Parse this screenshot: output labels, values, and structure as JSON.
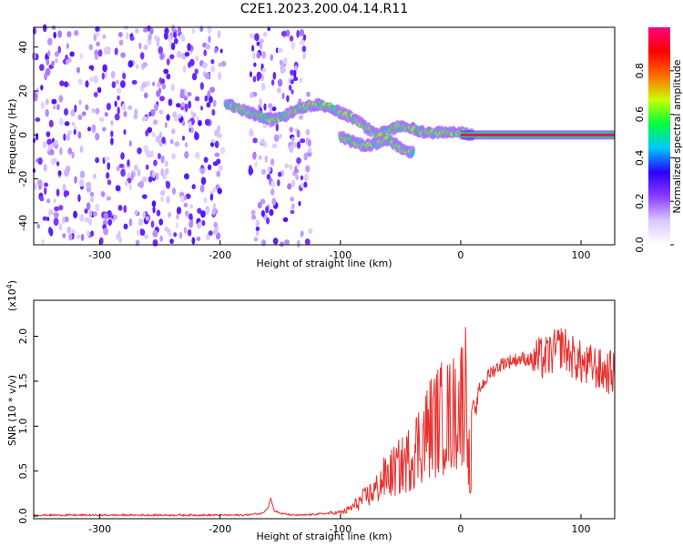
{
  "chart_data": [
    {
      "type": "heatmap",
      "title": "C2E1.2023.200.04.14.R11",
      "xlabel": "Height of straight line (km)",
      "ylabel": "Frequency (Hz)",
      "xlim": [
        -355,
        128
      ],
      "ylim": [
        -50,
        49
      ],
      "x_ticks": [
        -300,
        -200,
        -100,
        0,
        100
      ],
      "y_ticks": [
        -40,
        -20,
        0,
        20,
        40
      ],
      "grid": false,
      "colorbar": {
        "label": "Normalized spectral amplitude",
        "range": [
          0.0,
          1.0
        ],
        "ticks": [
          0.0,
          0.2,
          0.4,
          0.6,
          0.8
        ],
        "colors": [
          "#ffffff",
          "#d9c8ff",
          "#8a3cff",
          "#2b00ff",
          "#00c8ff",
          "#00ff3c",
          "#c8ff00",
          "#ff6a00",
          "#ff0000",
          "#ff0080"
        ]
      },
      "noise_regions": [
        {
          "x": [
            -355,
            -197
          ],
          "freq": [
            -50,
            49
          ],
          "level": 0.25
        },
        {
          "x": [
            -175,
            -125
          ],
          "freq": [
            -50,
            49
          ],
          "level": 0.2
        }
      ],
      "ridge": [
        {
          "x": -195,
          "f": 14
        },
        {
          "x": -185,
          "f": 12
        },
        {
          "x": -175,
          "f": 10
        },
        {
          "x": -165,
          "f": 8
        },
        {
          "x": -155,
          "f": 7
        },
        {
          "x": -145,
          "f": 9
        },
        {
          "x": -135,
          "f": 12
        },
        {
          "x": -120,
          "f": 14
        },
        {
          "x": -110,
          "f": 13
        },
        {
          "x": -100,
          "f": 10
        },
        {
          "x": -90,
          "f": 8
        },
        {
          "x": -80,
          "f": 4
        },
        {
          "x": -70,
          "f": 0
        },
        {
          "x": -60,
          "f": 2
        },
        {
          "x": -50,
          "f": 4
        },
        {
          "x": -40,
          "f": 3
        },
        {
          "x": -30,
          "f": 1
        },
        {
          "x": -20,
          "f": 1
        },
        {
          "x": -10,
          "f": 1
        },
        {
          "x": 0,
          "f": 1
        },
        {
          "x": 10,
          "f": 0
        },
        {
          "x": 128,
          "f": 0
        }
      ],
      "ridge_lower": [
        {
          "x": -100,
          "f": -1
        },
        {
          "x": -90,
          "f": -3
        },
        {
          "x": -80,
          "f": -5
        },
        {
          "x": -70,
          "f": -4
        },
        {
          "x": -60,
          "f": -2
        },
        {
          "x": -50,
          "f": -6
        },
        {
          "x": -40,
          "f": -8
        }
      ],
      "line_amplitude": 0.95
    },
    {
      "type": "line",
      "xlabel": "Height of straight line (km)",
      "ylabel": "SNR (10 * v/v)",
      "y_multiplier_label": "(x10",
      "y_multiplier_exp": "4",
      "y_multiplier_close": ")",
      "xlim": [
        -355,
        128
      ],
      "ylim": [
        -0.03,
        2.4
      ],
      "x_ticks": [
        -300,
        -200,
        -100,
        0,
        100
      ],
      "y_ticks": [
        0.0,
        0.5,
        1.0,
        1.5,
        2.0
      ],
      "y_tick_labels": [
        "0.0",
        "0.5",
        "1.0",
        "1.5",
        "2.0"
      ],
      "color": "#e8302f",
      "grid": false,
      "series": [
        {
          "x": [
            -355,
            -330,
            -300,
            -270,
            -240,
            -210,
            -180,
            -165,
            -160,
            -158,
            -155,
            -150,
            -140,
            -130,
            -120,
            -110,
            -100,
            -95,
            -90,
            -85,
            -80,
            -75,
            -70,
            -65,
            -60,
            -55,
            -50,
            -45,
            -40,
            -35,
            -30,
            -25,
            -20,
            -15,
            -10,
            -5,
            0,
            5,
            8,
            10,
            12,
            15,
            20,
            25,
            30,
            35,
            40,
            50,
            60,
            70,
            75,
            80,
            85,
            90,
            95,
            100,
            105,
            110,
            115,
            120,
            128
          ],
          "values": [
            0.01,
            0.01,
            0.01,
            0.01,
            0.01,
            0.01,
            0.01,
            0.03,
            0.1,
            0.2,
            0.06,
            0.03,
            0.01,
            0.01,
            0.02,
            0.03,
            0.04,
            0.06,
            0.1,
            0.15,
            0.2,
            0.25,
            0.3,
            0.4,
            0.45,
            0.5,
            0.55,
            0.6,
            0.7,
            0.8,
            0.9,
            1.0,
            1.05,
            1.1,
            1.1,
            1.15,
            1.25,
            1.5,
            0.2,
            1.3,
            1.1,
            1.4,
            1.5,
            1.6,
            1.65,
            1.7,
            1.72,
            1.75,
            1.74,
            1.75,
            1.8,
            1.85,
            1.9,
            1.8,
            1.75,
            1.7,
            1.65,
            1.68,
            1.62,
            1.6,
            1.6
          ]
        }
      ]
    }
  ]
}
